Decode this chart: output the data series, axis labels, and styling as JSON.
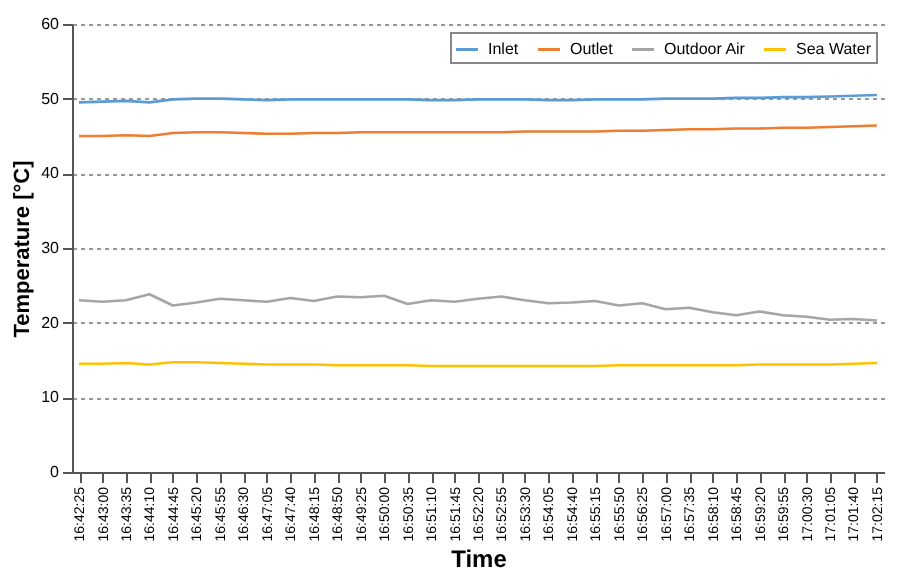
{
  "chart_data": {
    "type": "line",
    "xlabel": "Time",
    "ylabel": "Temperature [°C]",
    "categories": [
      "16:42:25",
      "16:43:00",
      "16:43:35",
      "16:44:10",
      "16:44:45",
      "16:45:20",
      "16:45:55",
      "16:46:30",
      "16:47:05",
      "16:47:40",
      "16:48:15",
      "16:48:50",
      "16:49:25",
      "16:50:00",
      "16:50:35",
      "16:51:10",
      "16:51:45",
      "16:52:20",
      "16:52:55",
      "16:53:30",
      "16:54:05",
      "16:54:40",
      "16:55:15",
      "16:55:50",
      "16:56:25",
      "16:57:00",
      "16:57:35",
      "16:58:10",
      "16:58:45",
      "16:59:20",
      "16:59:55",
      "17:00:30",
      "17:01:05",
      "17:01:40",
      "17:02:15"
    ],
    "series": [
      {
        "name": "Inlet",
        "color": "#5b9bd5",
        "values": [
          49.5,
          49.6,
          49.7,
          49.5,
          49.9,
          50,
          50,
          49.9,
          49.8,
          49.9,
          49.9,
          49.9,
          49.9,
          49.9,
          49.9,
          49.8,
          49.8,
          49.9,
          49.9,
          49.9,
          49.8,
          49.8,
          49.9,
          49.9,
          49.9,
          50,
          50,
          50,
          50.1,
          50.1,
          50.2,
          50.2,
          50.3,
          50.4,
          50.5
        ]
      },
      {
        "name": "Outlet",
        "color": "#ed7d31",
        "values": [
          45,
          45,
          45.1,
          45,
          45.4,
          45.5,
          45.5,
          45.4,
          45.3,
          45.3,
          45.4,
          45.4,
          45.5,
          45.5,
          45.5,
          45.5,
          45.5,
          45.5,
          45.5,
          45.6,
          45.6,
          45.6,
          45.6,
          45.7,
          45.7,
          45.8,
          45.9,
          45.9,
          46,
          46,
          46.1,
          46.1,
          46.2,
          46.3,
          46.4
        ]
      },
      {
        "name": "Outdoor Air",
        "color": "#a5a5a5",
        "values": [
          23,
          22.8,
          23,
          23.8,
          22.3,
          22.7,
          23.2,
          23,
          22.8,
          23.3,
          22.9,
          23.5,
          23.4,
          23.6,
          22.5,
          23,
          22.8,
          23.2,
          23.5,
          23,
          22.6,
          22.7,
          22.9,
          22.3,
          22.6,
          21.8,
          22,
          21.4,
          21,
          21.5,
          21,
          20.8,
          20.4,
          20.5,
          20.3
        ]
      },
      {
        "name": "Sea Water",
        "color": "#ffc000",
        "values": [
          14.5,
          14.5,
          14.6,
          14.4,
          14.7,
          14.7,
          14.6,
          14.5,
          14.4,
          14.4,
          14.4,
          14.3,
          14.3,
          14.3,
          14.3,
          14.2,
          14.2,
          14.2,
          14.2,
          14.2,
          14.2,
          14.2,
          14.2,
          14.3,
          14.3,
          14.3,
          14.3,
          14.3,
          14.3,
          14.4,
          14.4,
          14.4,
          14.4,
          14.5,
          14.6
        ]
      }
    ],
    "ylim": [
      0,
      60
    ],
    "yticks": [
      0,
      10,
      20,
      30,
      40,
      50,
      60
    ],
    "grid": "y",
    "legend": "top right",
    "marker": "none",
    "line_style": "solid"
  }
}
